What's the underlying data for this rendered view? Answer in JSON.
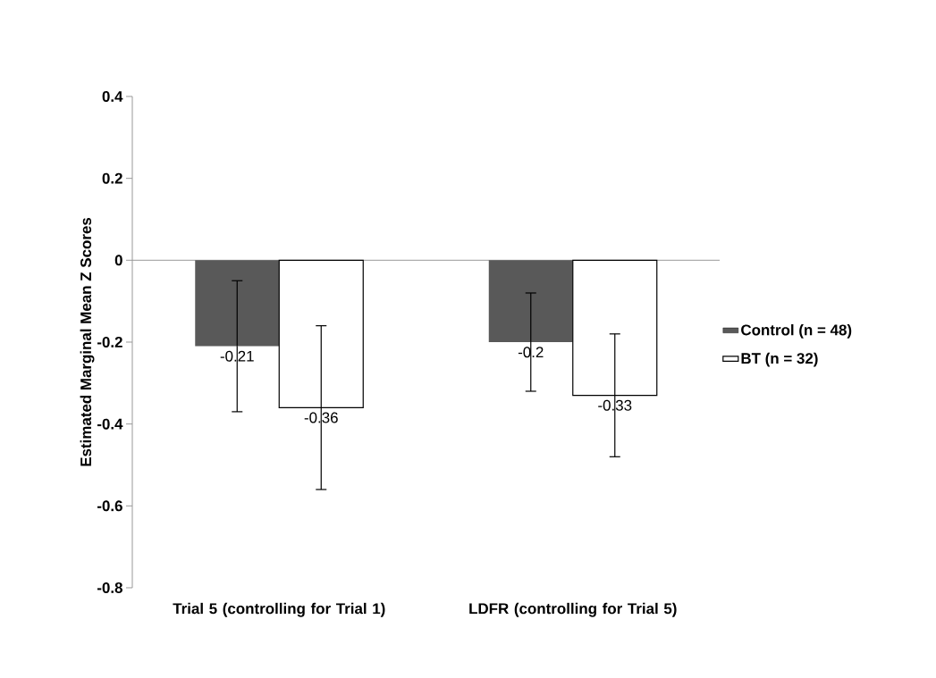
{
  "chart_data": {
    "type": "bar",
    "ylabel": "Estimated Marginal Mean Z Scores",
    "categories": [
      "Trial 5 (controlling for Trial 1)",
      "LDFR (controlling for Trial 5)"
    ],
    "series": [
      {
        "name": "Control (n = 48)",
        "color": "#595959",
        "values": [
          -0.21,
          -0.2
        ],
        "errors": [
          0.16,
          0.12
        ]
      },
      {
        "name": "BT (n = 32)",
        "color": "#ffffff",
        "values": [
          -0.36,
          -0.33
        ],
        "errors": [
          0.2,
          0.15
        ]
      }
    ],
    "ylim": [
      -0.8,
      0.4
    ],
    "yticks": [
      -0.8,
      -0.6,
      -0.4,
      -0.2,
      0,
      0.2,
      0.4
    ],
    "data_labels": true,
    "legend": "right"
  }
}
